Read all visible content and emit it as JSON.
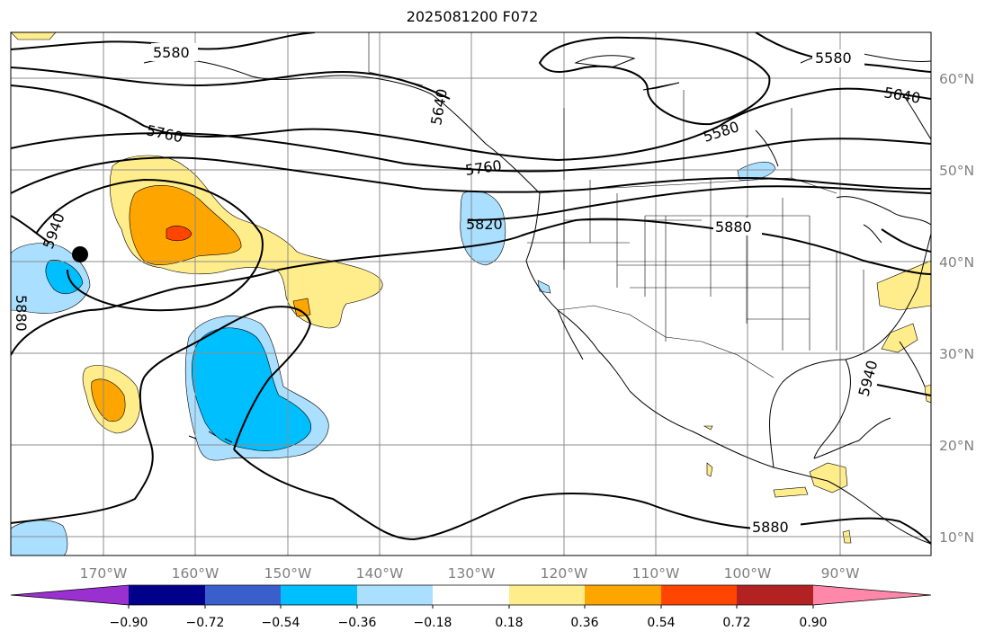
{
  "title": "2025081200 F072",
  "lon_labels": [
    "170°W",
    "160°W",
    "150°W",
    "140°W",
    "130°W",
    "120°W",
    "110°W",
    "100°W",
    "90°W"
  ],
  "lat_labels": [
    "60°N",
    "50°N",
    "40°N",
    "30°N",
    "20°N",
    "10°N"
  ],
  "colorbar": {
    "tick_labels": [
      "−0.90",
      "−0.72",
      "−0.54",
      "−0.36",
      "−0.18",
      "0.18",
      "0.36",
      "0.54",
      "0.72",
      "0.90"
    ],
    "colors": [
      "#9b30d0",
      "#00008b",
      "#3a5fcd",
      "#00bfff",
      "#aadfff",
      "#ffffff",
      "#ffec8b",
      "#ffa500",
      "#ff4500",
      "#b22222",
      "#ff88aa"
    ]
  },
  "contour_labels": [
    "5580",
    "5580",
    "5580",
    "5640",
    "5640",
    "5760",
    "5760",
    "5820",
    "5880",
    "5880",
    "5880",
    "5940",
    "5940"
  ],
  "marker": "storm-position-dot"
}
